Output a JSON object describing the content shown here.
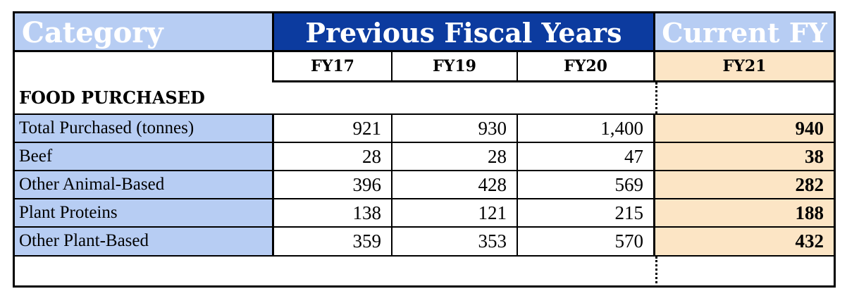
{
  "header": {
    "category": "Category",
    "previous": "Previous Fiscal Years",
    "current": "Current FY"
  },
  "years": [
    "FY17",
    "FY19",
    "FY20",
    "FY21"
  ],
  "section_title": "FOOD PURCHASED",
  "rows": [
    {
      "label": "Total Purchased (tonnes)",
      "values": [
        "921",
        "930",
        "1,400",
        "940"
      ]
    },
    {
      "label": "Beef",
      "values": [
        "28",
        "28",
        "47",
        "38"
      ]
    },
    {
      "label": "Other Animal-Based",
      "values": [
        "396",
        "428",
        "569",
        "282"
      ]
    },
    {
      "label": "Plant Proteins",
      "values": [
        "138",
        "121",
        "215",
        "188"
      ]
    },
    {
      "label": "Other Plant-Based",
      "values": [
        "359",
        "353",
        "570",
        "432"
      ]
    }
  ],
  "colors": {
    "category_bg": "#b7cdf3",
    "previous_bg": "#0c3b9f",
    "current_bg": "#fce5c5"
  }
}
